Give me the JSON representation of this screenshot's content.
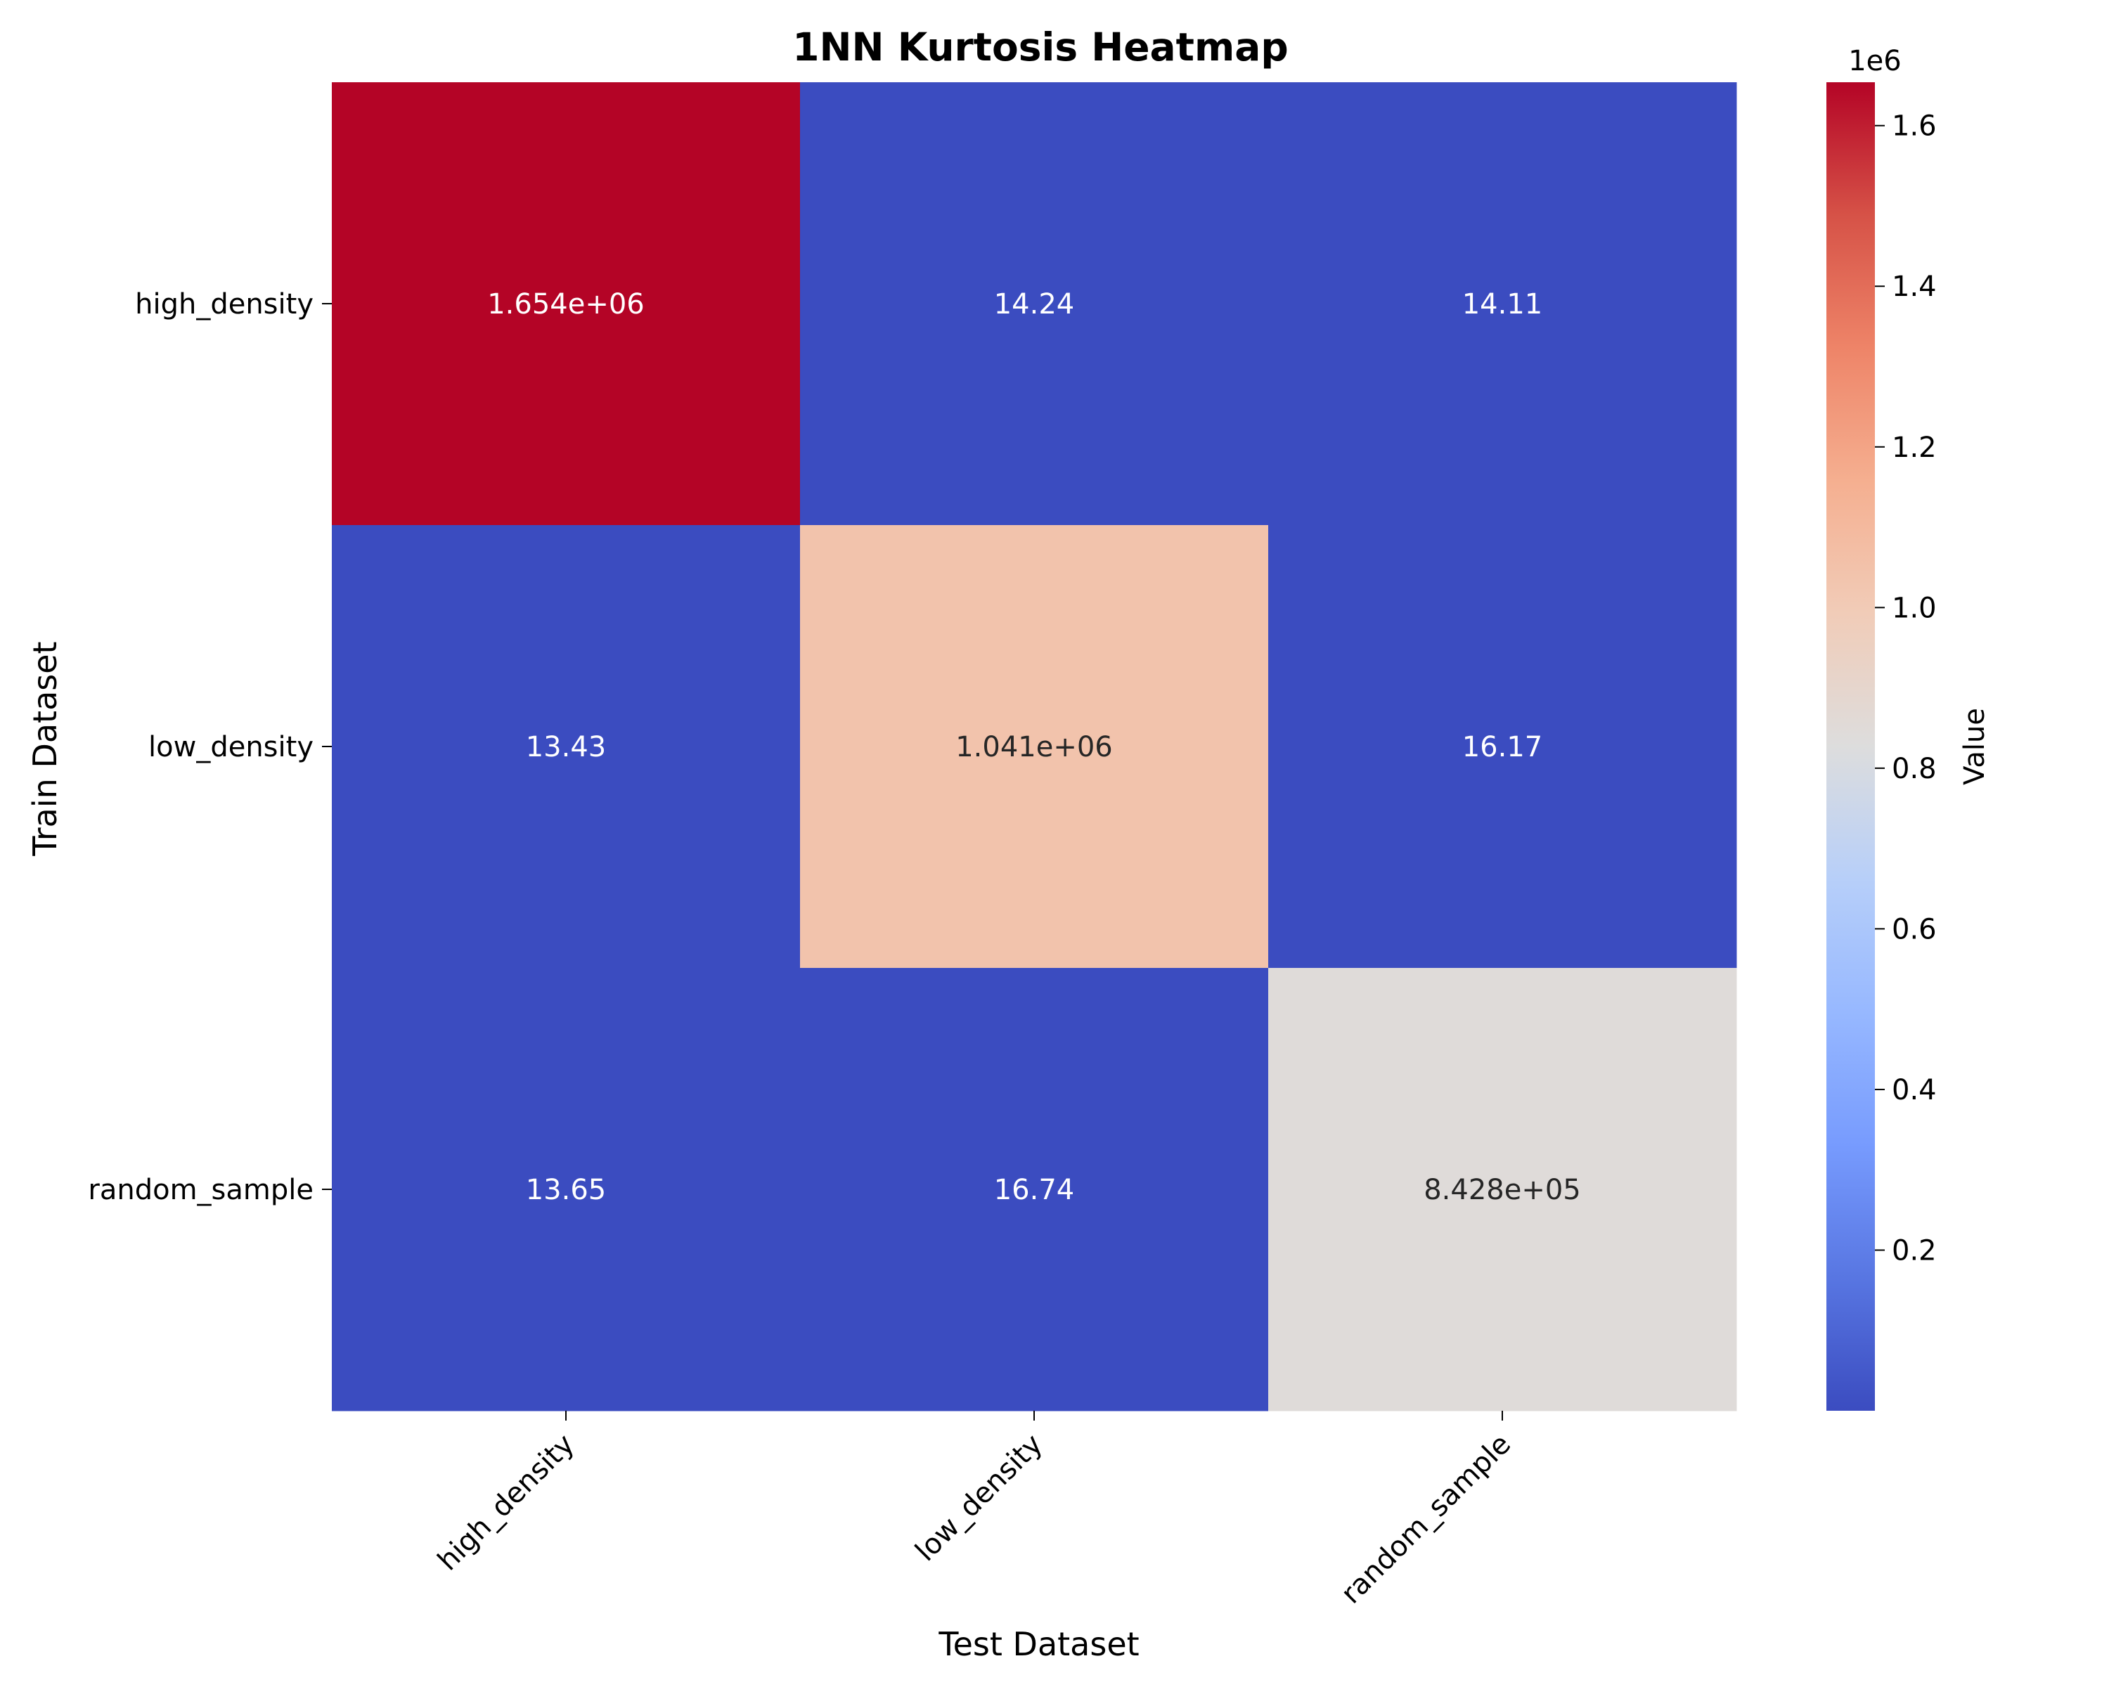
{
  "chart_data": {
    "type": "heatmap",
    "title": "1NN Kurtosis Heatmap",
    "xlabel": "Test Dataset",
    "ylabel": "Train Dataset",
    "x_categories": [
      "high_density",
      "low_density",
      "random_sample"
    ],
    "y_categories": [
      "high_density",
      "low_density",
      "random_sample"
    ],
    "values": [
      [
        1654000,
        14.24,
        14.11
      ],
      [
        13.43,
        1041000,
        16.17
      ],
      [
        13.65,
        16.74,
        842800
      ]
    ],
    "annotations": [
      [
        "1.654e+06",
        "14.24",
        "14.11"
      ],
      [
        "13.43",
        "1.041e+06",
        "16.17"
      ],
      [
        "13.65",
        "16.74",
        "8.428e+05"
      ]
    ],
    "colormap": "coolwarm",
    "colors": {
      "low": "#3b4cc0",
      "mid": "#dddddd",
      "high": "#b40426"
    },
    "colorbar": {
      "label": "Value",
      "offset_text": "1e6",
      "ticks": [
        "0.2",
        "0.4",
        "0.6",
        "0.8",
        "1.0",
        "1.2",
        "1.4",
        "1.6"
      ],
      "tick_values": [
        0.2,
        0.4,
        0.6,
        0.8,
        1.0,
        1.2,
        1.4,
        1.6
      ],
      "range": [
        13.43,
        1654000
      ],
      "scale": 1000000
    },
    "grid": false
  }
}
